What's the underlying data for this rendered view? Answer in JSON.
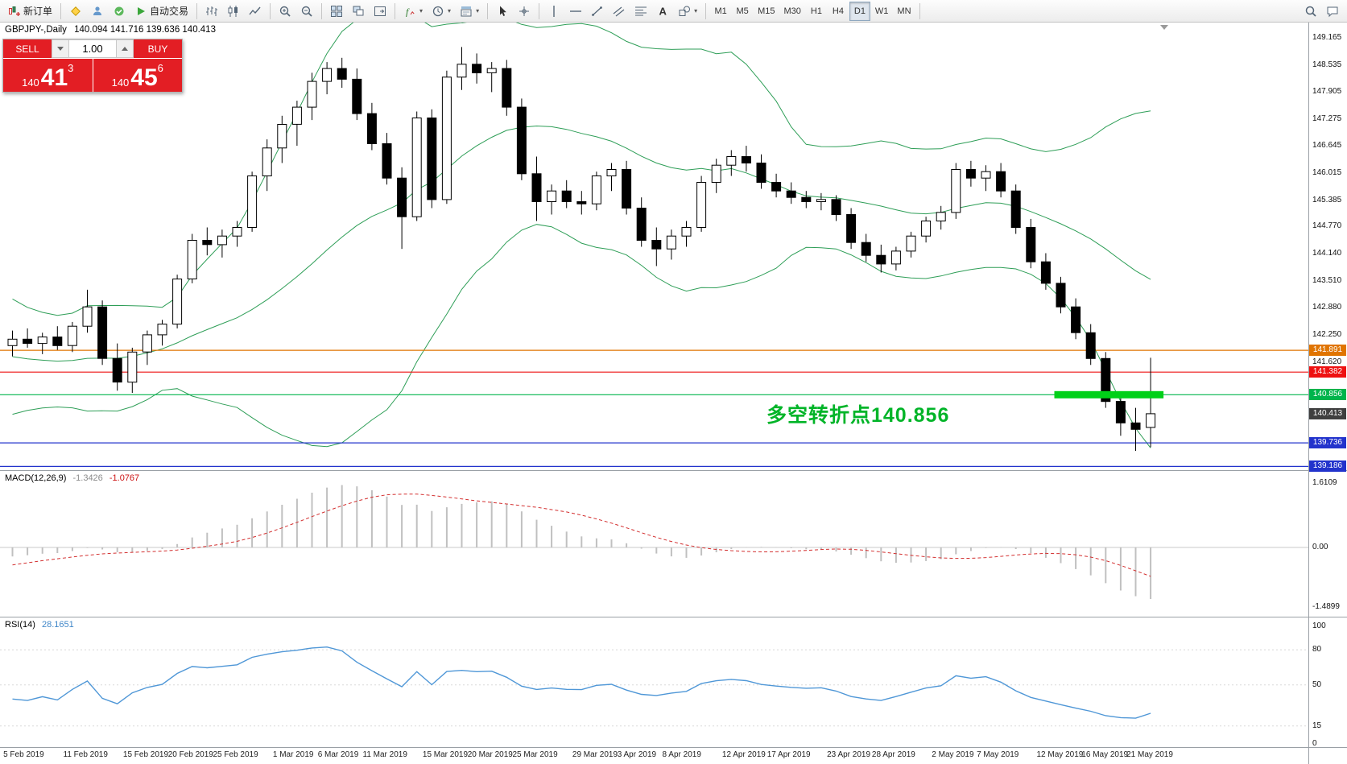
{
  "toolbar": {
    "groups": [
      {
        "name": "orders",
        "buttons": [
          {
            "icon": "new-order-icon",
            "label": "新订单",
            "name": "new-order-button"
          }
        ]
      },
      {
        "name": "apps",
        "buttons": [
          {
            "icon": "metaeditor-icon",
            "name": "metaeditor-button"
          },
          {
            "icon": "market-icon",
            "name": "market-button"
          },
          {
            "icon": "signals-icon",
            "name": "signals-button"
          },
          {
            "icon": "autotrading-icon",
            "label": "自动交易",
            "name": "autotrading-button"
          }
        ]
      },
      {
        "name": "chart-types",
        "buttons": [
          {
            "icon": "bar-chart-icon",
            "name": "bar-chart-button"
          },
          {
            "icon": "candlestick-icon",
            "name": "candlestick-button"
          },
          {
            "icon": "line-chart-icon",
            "name": "line-chart-button"
          }
        ]
      },
      {
        "name": "zoom",
        "buttons": [
          {
            "icon": "zoom-in-icon",
            "name": "zoom-in-button"
          },
          {
            "icon": "zoom-out-icon",
            "name": "zoom-out-button"
          }
        ]
      },
      {
        "name": "windows",
        "buttons": [
          {
            "icon": "tile-windows-icon",
            "name": "tile-windows-button"
          },
          {
            "icon": "arrange-icon",
            "name": "arrange-button"
          },
          {
            "icon": "chart-shift-icon",
            "name": "chart-shift-button"
          }
        ]
      },
      {
        "name": "tools",
        "buttons": [
          {
            "icon": "indicators-icon",
            "name": "indicators-button",
            "dropdown": true
          },
          {
            "icon": "periods-icon",
            "name": "periods-button",
            "dropdown": true
          },
          {
            "icon": "templates-icon",
            "name": "templates-button",
            "dropdown": true
          }
        ]
      },
      {
        "name": "pointer",
        "buttons": [
          {
            "icon": "cursor-icon",
            "name": "cursor-button"
          },
          {
            "icon": "crosshair-icon",
            "name": "crosshair-button"
          }
        ]
      },
      {
        "name": "drawing",
        "buttons": [
          {
            "icon": "vline-icon",
            "name": "vertical-line-button"
          },
          {
            "icon": "hline-icon",
            "name": "horizontal-line-button"
          },
          {
            "icon": "trendline-icon",
            "name": "trendline-button"
          },
          {
            "icon": "channel-icon",
            "name": "channel-button"
          },
          {
            "icon": "fibo-icon",
            "name": "fibonacci-button"
          },
          {
            "icon": "text-icon",
            "name": "text-button"
          },
          {
            "icon": "shapes-icon",
            "name": "shapes-button",
            "dropdown": true
          }
        ]
      },
      {
        "name": "timeframes",
        "buttons": [
          {
            "label": "M1",
            "name": "timeframe-m1"
          },
          {
            "label": "M5",
            "name": "timeframe-m5"
          },
          {
            "label": "M15",
            "name": "timeframe-m15"
          },
          {
            "label": "M30",
            "name": "timeframe-m30"
          },
          {
            "label": "H1",
            "name": "timeframe-h1"
          },
          {
            "label": "H4",
            "name": "timeframe-h4"
          },
          {
            "label": "D1",
            "name": "timeframe-d1",
            "active": true
          },
          {
            "label": "W1",
            "name": "timeframe-w1"
          },
          {
            "label": "MN",
            "name": "timeframe-mn"
          }
        ]
      },
      {
        "name": "right",
        "align": "right",
        "buttons": [
          {
            "icon": "search-icon",
            "name": "search-button"
          },
          {
            "icon": "chat-icon",
            "name": "chat-button"
          }
        ]
      }
    ]
  },
  "chart": {
    "symbol_title": "GBPJPY-,Daily",
    "ohlc_text": "140.094 141.716 139.636 140.413",
    "annotation": "多空转折点140.856",
    "trade_panel": {
      "sell": "SELL",
      "buy": "BUY",
      "lot": "1.00",
      "sell_price_small": "140",
      "sell_price_big": "41",
      "sell_price_point": "3",
      "buy_price_small": "140",
      "buy_price_big": "45",
      "buy_price_point": "6"
    }
  },
  "price_scale": {
    "ticks": [
      "149.165",
      "148.535",
      "147.905",
      "147.275",
      "146.645",
      "146.015",
      "145.385",
      "144.770",
      "144.140",
      "143.510",
      "142.880",
      "142.250",
      "141.620"
    ],
    "badges": [
      {
        "text": "141.891",
        "price": 141.891,
        "color": "#e07400"
      },
      {
        "text": "141.382",
        "price": 141.382,
        "color": "#ee1111"
      },
      {
        "text": "140.856",
        "price": 140.856,
        "color": "#00b44c"
      },
      {
        "text": "140.413",
        "price": 140.413,
        "color": "#3f3f3f"
      },
      {
        "text": "139.736",
        "price": 139.736,
        "color": "#2233cc"
      },
      {
        "text": "139.186",
        "price": 139.186,
        "color": "#2233cc"
      }
    ]
  },
  "macd": {
    "name": "MACD(12,26,9)",
    "value_main": "-1.3426",
    "value_signal": "-1.0767",
    "scale": [
      "1.6109",
      "0.00",
      "-1.4899"
    ]
  },
  "rsi": {
    "name": "RSI(14)",
    "value": "28.1651",
    "scale": [
      "100",
      "80",
      "50",
      "15",
      "0"
    ]
  },
  "chart_data": {
    "type": "candlestick",
    "symbol": "GBPJPY",
    "timeframe": "Daily",
    "title": "GBPJPY-,Daily",
    "ohlc_current": {
      "open": 140.094,
      "high": 141.716,
      "low": 139.636,
      "close": 140.413
    },
    "y_axis": {
      "min": 139.1,
      "max": 149.52
    },
    "colors": {
      "bull": "#ffffff",
      "bear": "#000000",
      "bands": "#2e9e57",
      "macd_hist": "#c0c0c0",
      "macd_signal": "#d32f2f",
      "rsi": "#4f97d7"
    },
    "overlays": {
      "bollinger": {
        "period": 20,
        "deviation": 2
      }
    },
    "indicators": [
      {
        "type": "macd",
        "fast": 12,
        "slow": 26,
        "signal": 9,
        "current_main": -1.3426,
        "current_signal": -1.0767,
        "scale_max": 1.6109,
        "scale_min": -1.4899
      },
      {
        "type": "rsi",
        "period": 14,
        "current": 28.1651,
        "levels": [
          80,
          50,
          15
        ]
      }
    ],
    "levels": [
      {
        "price": 141.891,
        "color": "#e07400"
      },
      {
        "price": 141.382,
        "color": "#ee1111"
      },
      {
        "price": 140.856,
        "color": "#00b44c"
      },
      {
        "price": 139.736,
        "color": "#2233cc"
      },
      {
        "price": 139.186,
        "color": "#2233cc"
      }
    ],
    "highlight": {
      "price": 140.856,
      "from_index": 70,
      "color": "#00d018",
      "label": "多空转折点140.856"
    },
    "pre_closes": [
      143.4,
      143.1,
      142.8,
      142.45,
      142.15,
      141.9,
      141.6,
      141.2,
      140.9,
      140.7,
      140.6,
      140.8,
      141.1,
      141.5,
      141.8,
      142.0,
      142.1,
      142.05,
      141.95,
      142.0
    ],
    "candles": [
      [
        142.0,
        142.35,
        141.75,
        142.15
      ],
      [
        142.15,
        142.4,
        141.95,
        142.05
      ],
      [
        142.05,
        142.3,
        141.8,
        142.2
      ],
      [
        142.2,
        142.45,
        141.9,
        142.0
      ],
      [
        142.0,
        142.55,
        141.85,
        142.45
      ],
      [
        142.45,
        143.3,
        142.3,
        142.9
      ],
      [
        142.9,
        143.05,
        141.55,
        141.7
      ],
      [
        141.7,
        142.05,
        140.95,
        141.15
      ],
      [
        141.15,
        141.95,
        140.9,
        141.85
      ],
      [
        141.85,
        142.35,
        141.55,
        142.25
      ],
      [
        142.25,
        142.6,
        142.0,
        142.5
      ],
      [
        142.5,
        143.65,
        142.4,
        143.55
      ],
      [
        143.55,
        144.6,
        143.45,
        144.45
      ],
      [
        144.45,
        144.75,
        144.1,
        144.35
      ],
      [
        144.35,
        144.7,
        144.05,
        144.55
      ],
      [
        144.55,
        144.9,
        144.3,
        144.75
      ],
      [
        144.75,
        146.05,
        144.65,
        145.95
      ],
      [
        145.95,
        146.8,
        145.6,
        146.6
      ],
      [
        146.6,
        147.35,
        146.25,
        147.15
      ],
      [
        147.15,
        147.7,
        146.65,
        147.55
      ],
      [
        147.55,
        148.35,
        147.25,
        148.15
      ],
      [
        148.15,
        148.6,
        147.85,
        148.45
      ],
      [
        148.45,
        148.7,
        148.0,
        148.2
      ],
      [
        148.2,
        148.45,
        147.25,
        147.4
      ],
      [
        147.4,
        147.65,
        146.55,
        146.7
      ],
      [
        146.7,
        146.95,
        145.75,
        145.9
      ],
      [
        145.9,
        146.15,
        144.25,
        145.0
      ],
      [
        145.0,
        147.45,
        144.9,
        147.3
      ],
      [
        147.3,
        147.5,
        145.2,
        145.4
      ],
      [
        145.4,
        148.4,
        145.3,
        148.25
      ],
      [
        148.25,
        148.95,
        147.95,
        148.55
      ],
      [
        148.55,
        148.8,
        148.1,
        148.35
      ],
      [
        148.35,
        148.6,
        147.9,
        148.45
      ],
      [
        148.45,
        148.65,
        147.35,
        147.55
      ],
      [
        147.55,
        147.75,
        145.85,
        146.0
      ],
      [
        146.0,
        146.4,
        144.9,
        145.35
      ],
      [
        145.35,
        145.75,
        145.05,
        145.6
      ],
      [
        145.6,
        145.85,
        145.2,
        145.35
      ],
      [
        145.35,
        145.6,
        145.05,
        145.3
      ],
      [
        145.3,
        146.05,
        145.15,
        145.95
      ],
      [
        145.95,
        146.25,
        145.6,
        146.1
      ],
      [
        146.1,
        146.3,
        145.05,
        145.2
      ],
      [
        145.2,
        145.45,
        144.3,
        144.45
      ],
      [
        144.45,
        144.75,
        143.85,
        144.25
      ],
      [
        144.25,
        144.7,
        144.0,
        144.55
      ],
      [
        144.55,
        144.9,
        144.3,
        144.75
      ],
      [
        144.75,
        145.95,
        144.65,
        145.8
      ],
      [
        145.8,
        146.35,
        145.55,
        146.2
      ],
      [
        146.2,
        146.55,
        145.95,
        146.4
      ],
      [
        146.4,
        146.65,
        146.05,
        146.25
      ],
      [
        146.25,
        146.45,
        145.65,
        145.8
      ],
      [
        145.8,
        146.0,
        145.45,
        145.6
      ],
      [
        145.6,
        145.8,
        145.3,
        145.45
      ],
      [
        145.45,
        145.6,
        145.2,
        145.35
      ],
      [
        145.35,
        145.55,
        145.15,
        145.4
      ],
      [
        145.4,
        145.5,
        144.9,
        145.05
      ],
      [
        145.05,
        145.2,
        144.25,
        144.4
      ],
      [
        144.4,
        144.6,
        143.95,
        144.1
      ],
      [
        144.1,
        144.35,
        143.7,
        143.9
      ],
      [
        143.9,
        144.3,
        143.75,
        144.2
      ],
      [
        144.2,
        144.65,
        144.05,
        144.55
      ],
      [
        144.55,
        145.0,
        144.4,
        144.9
      ],
      [
        144.9,
        145.25,
        144.7,
        145.1
      ],
      [
        145.1,
        146.25,
        144.95,
        146.1
      ],
      [
        146.1,
        146.3,
        145.7,
        145.9
      ],
      [
        145.9,
        146.2,
        145.6,
        146.05
      ],
      [
        146.05,
        146.25,
        145.45,
        145.6
      ],
      [
        145.6,
        145.75,
        144.6,
        144.75
      ],
      [
        144.75,
        144.95,
        143.8,
        143.95
      ],
      [
        143.95,
        144.15,
        143.3,
        143.45
      ],
      [
        143.45,
        143.6,
        142.75,
        142.9
      ],
      [
        142.9,
        143.1,
        142.15,
        142.3
      ],
      [
        142.3,
        142.5,
        141.55,
        141.7
      ],
      [
        141.7,
        141.85,
        140.55,
        140.7
      ],
      [
        140.7,
        140.9,
        139.9,
        140.2
      ],
      [
        140.2,
        140.55,
        139.55,
        140.05
      ],
      [
        140.094,
        141.716,
        139.636,
        140.413
      ]
    ],
    "x_labels": [
      [
        "5 Feb 2019",
        1
      ],
      [
        "11 Feb 2019",
        5
      ],
      [
        "15 Feb 2019",
        9
      ],
      [
        "20 Feb 2019",
        12
      ],
      [
        "25 Feb 2019",
        15
      ],
      [
        "1 Mar 2019",
        19
      ],
      [
        "6 Mar 2019",
        22
      ],
      [
        "11 Mar 2019",
        25
      ],
      [
        "15 Mar 2019",
        29
      ],
      [
        "20 Mar 2019",
        32
      ],
      [
        "25 Mar 2019",
        35
      ],
      [
        "29 Mar 2019",
        39
      ],
      [
        "3 Apr 2019",
        42
      ],
      [
        "8 Apr 2019",
        45
      ],
      [
        "12 Apr 2019",
        49
      ],
      [
        "17 Apr 2019",
        52
      ],
      [
        "23 Apr 2019",
        56
      ],
      [
        "28 Apr 2019",
        59
      ],
      [
        "2 May 2019",
        63
      ],
      [
        "7 May 2019",
        66
      ],
      [
        "12 May 2019",
        70
      ],
      [
        "16 May 2019",
        73
      ],
      [
        "21 May 2019",
        76
      ]
    ]
  }
}
